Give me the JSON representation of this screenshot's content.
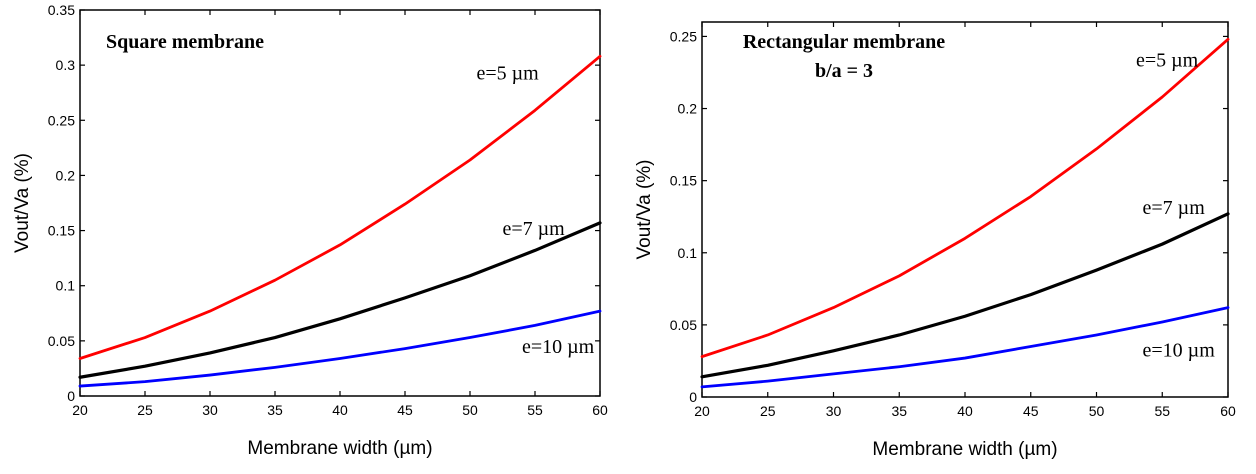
{
  "chart_data": [
    {
      "type": "line",
      "title": "",
      "annotation_title": [
        "Square membrane"
      ],
      "xlabel": "Membrane width (µm)",
      "ylabel": "Vout/Va (%)",
      "xlim": [
        20,
        60
      ],
      "ylim": [
        0,
        0.35
      ],
      "xticks": [
        20,
        25,
        30,
        35,
        40,
        45,
        50,
        55,
        60
      ],
      "xtick_labels": [
        "20",
        "25",
        "30",
        "35",
        "40",
        "45",
        "50",
        "55",
        "60"
      ],
      "yticks": [
        0,
        0.05,
        0.1,
        0.15,
        0.2,
        0.25,
        0.3,
        0.35
      ],
      "ytick_labels": [
        "0",
        "0.05",
        "0.1",
        "0.15",
        "0.2",
        "0.25",
        "0.3",
        "0.35"
      ],
      "grid": false,
      "legend": "none",
      "series": [
        {
          "name": "e=5 µm",
          "color": "#ff0000",
          "label_at": [
            50.5,
            0.287
          ],
          "x": [
            20,
            25,
            30,
            35,
            40,
            45,
            50,
            55,
            60
          ],
          "y": [
            0.034,
            0.053,
            0.077,
            0.105,
            0.137,
            0.174,
            0.214,
            0.259,
            0.308
          ]
        },
        {
          "name": "e=7 µm",
          "color": "#000000",
          "label_at": [
            52.5,
            0.146
          ],
          "x": [
            20,
            25,
            30,
            35,
            40,
            45,
            50,
            55,
            60
          ],
          "y": [
            0.017,
            0.027,
            0.039,
            0.053,
            0.07,
            0.089,
            0.109,
            0.132,
            0.157
          ]
        },
        {
          "name": "e=10 µm",
          "color": "#0000ff",
          "label_at": [
            54,
            0.039
          ],
          "x": [
            20,
            25,
            30,
            35,
            40,
            45,
            50,
            55,
            60
          ],
          "y": [
            0.009,
            0.013,
            0.019,
            0.026,
            0.034,
            0.043,
            0.053,
            0.064,
            0.077
          ]
        }
      ]
    },
    {
      "type": "line",
      "title": "",
      "annotation_title": [
        "Rectangular membrane",
        "b/a = 3"
      ],
      "xlabel": "Membrane width (µm)",
      "ylabel": "Vout/Va (%)",
      "xlim": [
        20,
        60
      ],
      "ylim": [
        0,
        0.26
      ],
      "xticks": [
        20,
        25,
        30,
        35,
        40,
        45,
        50,
        55,
        60
      ],
      "xtick_labels": [
        "20",
        "25",
        "30",
        "35",
        "40",
        "45",
        "50",
        "55",
        "60"
      ],
      "yticks": [
        0,
        0.05,
        0.1,
        0.15,
        0.2,
        0.25
      ],
      "ytick_labels": [
        "0",
        "0.05",
        "0.1",
        "0.15",
        "0.2",
        "0.25"
      ],
      "grid": false,
      "legend": "none",
      "series": [
        {
          "name": "e=5 µm",
          "color": "#ff0000",
          "label_at": [
            53,
            0.229
          ],
          "x": [
            20,
            25,
            30,
            35,
            40,
            45,
            50,
            55,
            60
          ],
          "y": [
            0.028,
            0.043,
            0.062,
            0.084,
            0.11,
            0.139,
            0.172,
            0.208,
            0.248
          ]
        },
        {
          "name": "e=7 µm",
          "color": "#000000",
          "label_at": [
            53.5,
            0.127
          ],
          "x": [
            20,
            25,
            30,
            35,
            40,
            45,
            50,
            55,
            60
          ],
          "y": [
            0.014,
            0.022,
            0.032,
            0.043,
            0.056,
            0.071,
            0.088,
            0.106,
            0.127
          ]
        },
        {
          "name": "e=10 µm",
          "color": "#0000ff",
          "label_at": [
            53.5,
            0.028
          ],
          "x": [
            20,
            25,
            30,
            35,
            40,
            45,
            50,
            55,
            60
          ],
          "y": [
            0.007,
            0.011,
            0.016,
            0.021,
            0.027,
            0.035,
            0.043,
            0.052,
            0.062
          ]
        }
      ]
    }
  ]
}
